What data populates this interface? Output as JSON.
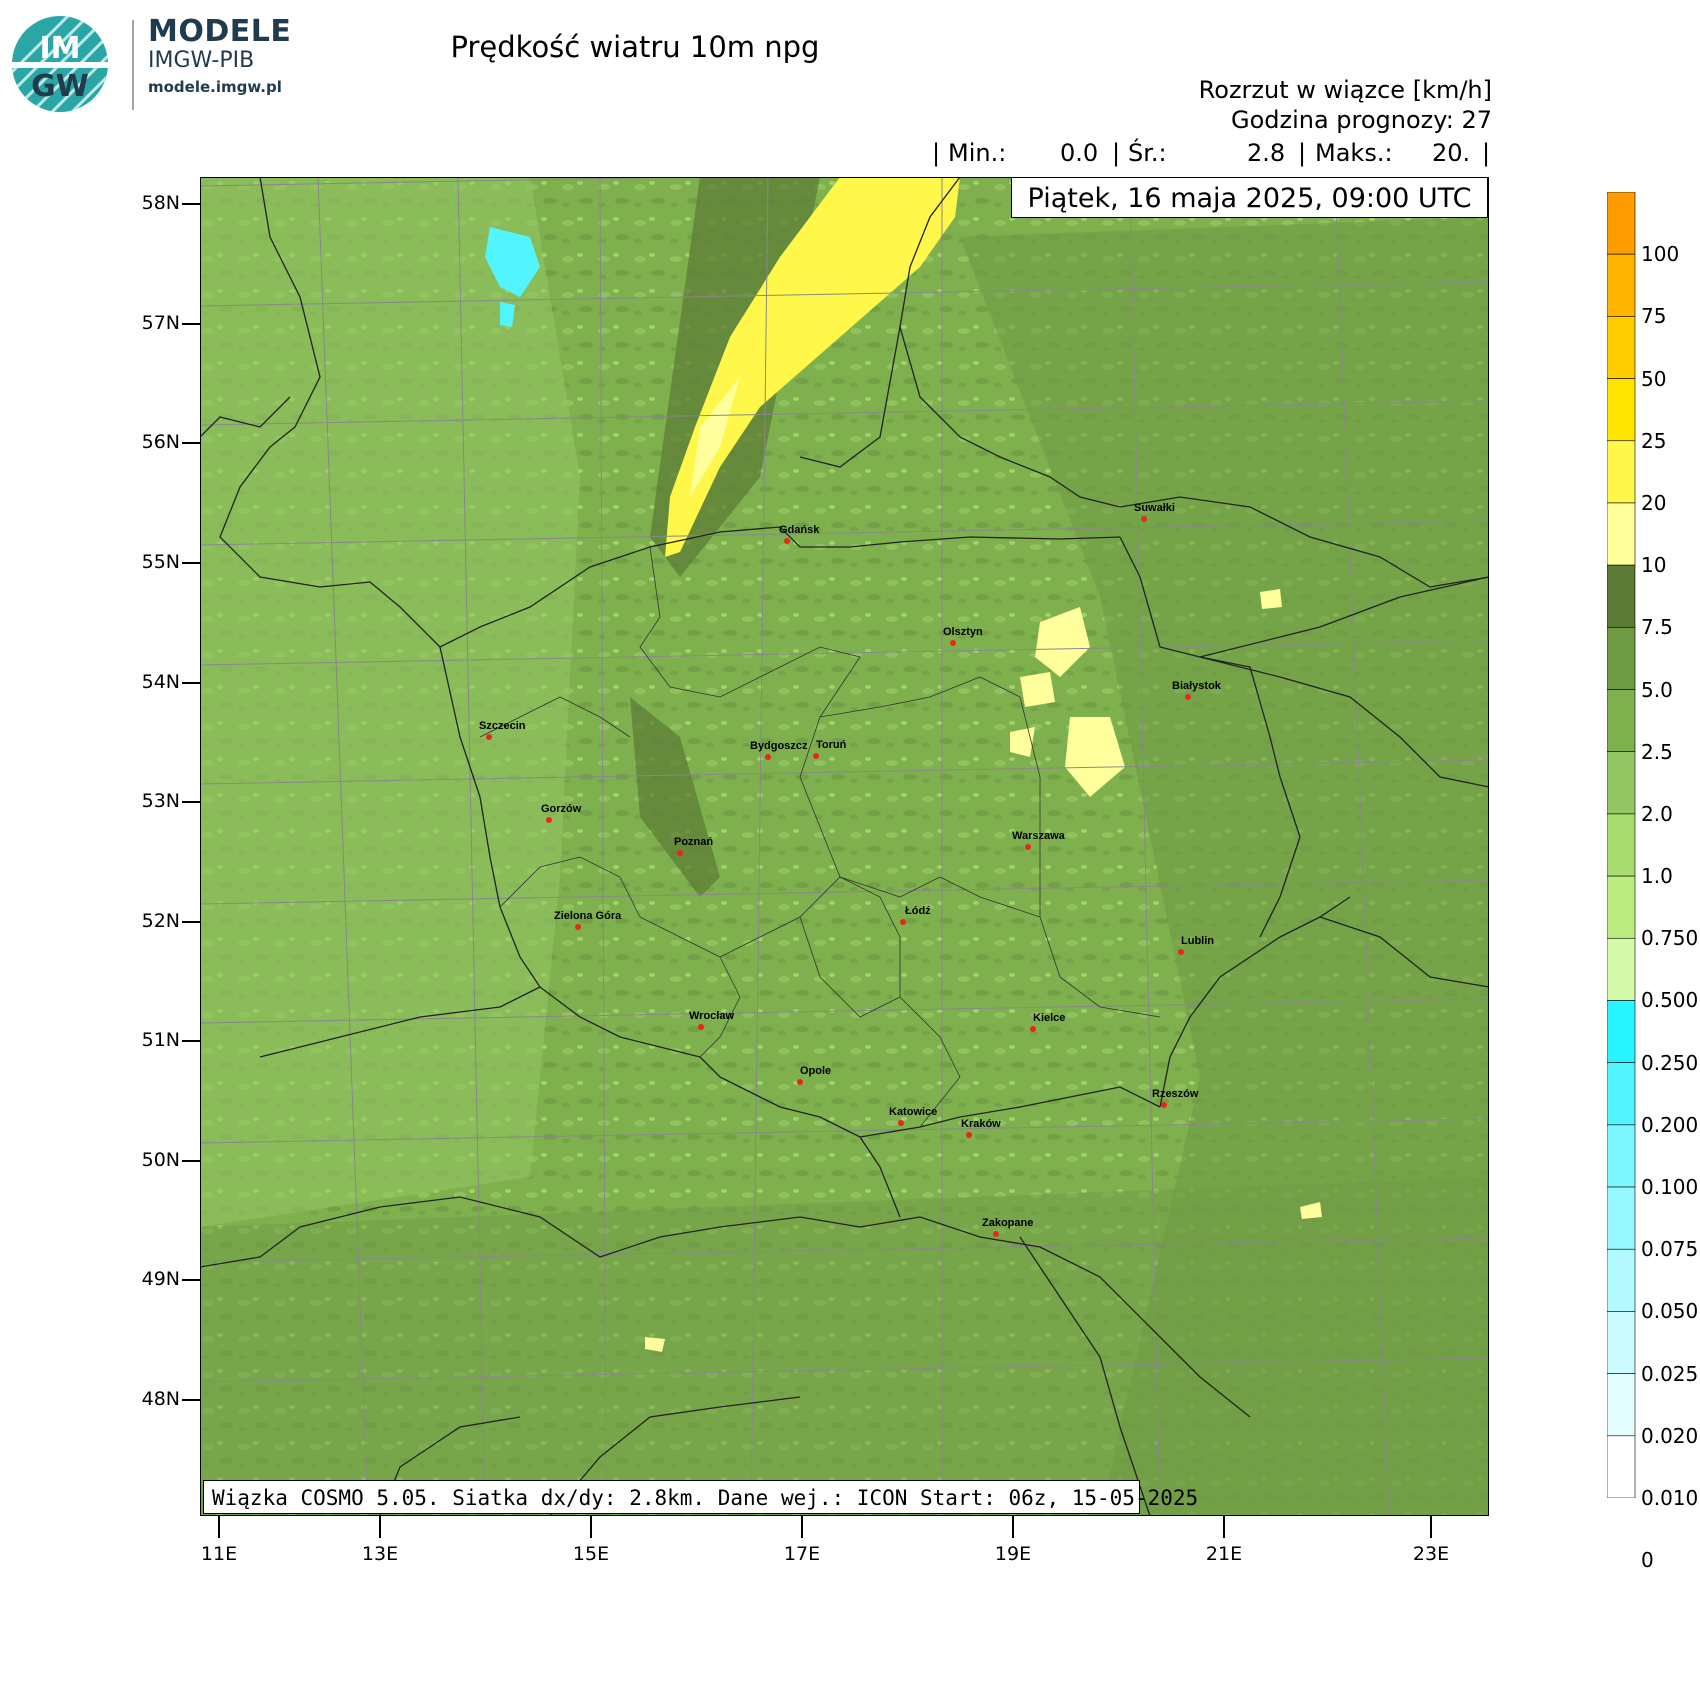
{
  "branding": {
    "logo_text_top": "IM",
    "logo_text_bottom": "GW",
    "name": "MODELE",
    "org": "IMGW-PIB",
    "url": "modele.imgw.pl"
  },
  "header": {
    "title": "Prędkość wiatru 10m npg",
    "variable": "Rozrzut w wiązce [km/h]",
    "forecast_hour": "Godzina prognozy: 27",
    "stats": {
      "sep1": "|",
      "min_label": "Min.:",
      "min_value": "0.0",
      "sep2": "|",
      "mean_label": "Śr.:",
      "mean_value": "2.8",
      "sep3": "|",
      "max_label": "Maks.:",
      "max_value": "20.",
      "sep4": "|"
    },
    "date": "Piątek, 16 maja 2025, 09:00 UTC"
  },
  "footer": "Wiązka COSMO 5.05. Siatka dx/dy: 2.8km. Dane wej.: ICON Start: 06z, 15-05-2025",
  "axes": {
    "lat_labels": [
      "58N",
      "57N",
      "56N",
      "55N",
      "54N",
      "53N",
      "52N",
      "51N",
      "50N",
      "49N",
      "48N"
    ],
    "lon_labels": [
      "11E",
      "13E",
      "15E",
      "17E",
      "19E",
      "21E",
      "23E"
    ]
  },
  "legend": {
    "labels": [
      "100",
      "75",
      "50",
      "25",
      "20",
      "10",
      "7.5",
      "5.0",
      "2.5",
      "2.0",
      "1.0",
      "0.750",
      "0.500",
      "0.250",
      "0.200",
      "0.100",
      "0.075",
      "0.050",
      "0.025",
      "0.020",
      "0.010",
      "0"
    ],
    "colors": [
      "#ff9c00",
      "#ffb400",
      "#ffcc00",
      "#ffe400",
      "#fff84a",
      "#ffff9c",
      "#5b7a35",
      "#6e9a44",
      "#7fb04e",
      "#93c763",
      "#a6dc6d",
      "#baec7f",
      "#d4f9a8",
      "#28f5ff",
      "#52f5ff",
      "#7df7ff",
      "#98f8ff",
      "#b2faff",
      "#cbfbff",
      "#e4fdff",
      "#ffffff"
    ]
  },
  "cities": [
    {
      "name": "Gdańsk"
    },
    {
      "name": "Suwałki"
    },
    {
      "name": "Olsztyn"
    },
    {
      "name": "Białystok"
    },
    {
      "name": "Szczecin"
    },
    {
      "name": "Bydgoszcz"
    },
    {
      "name": "Toruń"
    },
    {
      "name": "Gorzów"
    },
    {
      "name": "Warszawa"
    },
    {
      "name": "Poznań"
    },
    {
      "name": "Łódź"
    },
    {
      "name": "Zielona Góra"
    },
    {
      "name": "Lublin"
    },
    {
      "name": "Kielce"
    },
    {
      "name": "Wrocław"
    },
    {
      "name": "Opole"
    },
    {
      "name": "Rzeszów"
    },
    {
      "name": "Katowice"
    },
    {
      "name": "Kraków"
    },
    {
      "name": "Zakopane"
    }
  ],
  "colors": {
    "map_base": "#7fb04e",
    "city_marker": "#e8261a",
    "border": "#222222",
    "grid": "#888888"
  }
}
